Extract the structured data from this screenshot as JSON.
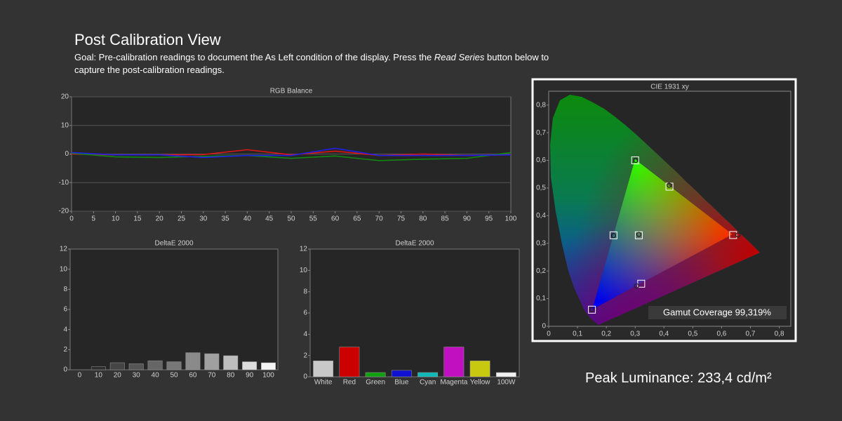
{
  "header": {
    "title": "Post Calibration View",
    "goal": [
      "Goal: Pre-calibration readings to document the As Left condition of the display. Press the ",
      "Read Series",
      " button below to capture the post-calibration readings."
    ]
  },
  "chart_data": [
    {
      "type": "line",
      "title": "RGB Balance",
      "x": [
        0,
        10,
        20,
        30,
        40,
        50,
        60,
        70,
        80,
        90,
        100
      ],
      "xlim": [
        0,
        100
      ],
      "xticks": [
        0,
        5,
        10,
        15,
        20,
        25,
        30,
        35,
        40,
        45,
        50,
        55,
        60,
        65,
        70,
        75,
        80,
        85,
        90,
        95,
        100
      ],
      "ylim": [
        -20,
        20
      ],
      "yticks": [
        -20,
        -10,
        0,
        10,
        20
      ],
      "grid": true,
      "series": [
        {
          "color": "#e01414",
          "values": [
            0,
            -0.3,
            -0.3,
            -0.2,
            1.5,
            -0.3,
            1,
            -0.5,
            0,
            -0.5,
            -0.3
          ]
        },
        {
          "color": "#118a11",
          "values": [
            0.3,
            -1,
            -1.2,
            -0.8,
            -0.5,
            -1.5,
            -0.7,
            -2.3,
            -1.8,
            -1.5,
            0.5
          ]
        },
        {
          "color": "#2020e8",
          "values": [
            0.5,
            -0.3,
            -0.3,
            -1.2,
            -0.5,
            -0.5,
            2,
            -0.5,
            -0.5,
            -0.5,
            -0.3
          ]
        }
      ]
    },
    {
      "type": "bar",
      "title": "DeltaE 2000",
      "categories": [
        "0",
        "10",
        "20",
        "30",
        "40",
        "50",
        "60",
        "70",
        "80",
        "90",
        "100"
      ],
      "values": [
        0,
        0.3,
        0.7,
        0.6,
        0.9,
        0.8,
        1.7,
        1.6,
        1.4,
        0.8,
        0.7
      ],
      "colors": [
        "#202020",
        "#2e2e2e",
        "#454545",
        "#555555",
        "#666666",
        "#777777",
        "#8a8a8a",
        "#a0a0a0",
        "#bdbdbd",
        "#dcdcdc",
        "#f4f4f4"
      ],
      "ylim": [
        0,
        12
      ],
      "yticks": [
        0,
        2,
        4,
        6,
        8,
        10,
        12
      ],
      "grid": false
    },
    {
      "type": "bar",
      "title": "DeltaE 2000",
      "categories": [
        "White",
        "Red",
        "Green",
        "Blue",
        "Cyan",
        "Magenta",
        "Yellow",
        "100W"
      ],
      "values": [
        1.5,
        2.8,
        0.4,
        0.6,
        0.4,
        2.8,
        1.5,
        0.4
      ],
      "colors": [
        "#c8c8c8",
        "#cc0000",
        "#10a010",
        "#1010d0",
        "#10b8b8",
        "#c010c0",
        "#c8c810",
        "#f0f0f0"
      ],
      "ylim": [
        0,
        12
      ],
      "yticks": [
        0,
        2,
        4,
        6,
        8,
        10,
        12
      ],
      "grid": false
    },
    {
      "type": "scatter",
      "title": "CIE 1931 xy",
      "xlim": [
        0,
        0.84
      ],
      "ylim": [
        0,
        0.85
      ],
      "xticks": [
        0,
        {
          "value": 0.1,
          "label": "0,1"
        },
        {
          "value": 0.2,
          "label": "0,2"
        },
        {
          "value": 0.3,
          "label": "0,3"
        },
        {
          "value": 0.4,
          "label": "0,4"
        },
        {
          "value": 0.5,
          "label": "0,5"
        },
        {
          "value": 0.6,
          "label": "0,6"
        },
        {
          "value": 0.7,
          "label": "0,7"
        },
        {
          "value": 0.8,
          "label": "0,8"
        }
      ],
      "yticks": [
        0,
        {
          "value": 0.1,
          "label": "0,1"
        },
        {
          "value": 0.2,
          "label": "0,2"
        },
        {
          "value": 0.3,
          "label": "0,3"
        },
        {
          "value": 0.4,
          "label": "0,4"
        },
        {
          "value": 0.5,
          "label": "0,5"
        },
        {
          "value": 0.6,
          "label": "0,6"
        },
        {
          "value": 0.7,
          "label": "0,7"
        },
        {
          "value": 0.8,
          "label": "0,8"
        }
      ],
      "series": [
        {
          "marker": "square",
          "color": "#ffffff",
          "x": [
            0.64,
            0.3,
            0.15,
            0.3127,
            0.225,
            0.321,
            0.419
          ],
          "y": [
            0.33,
            0.6,
            0.06,
            0.329,
            0.329,
            0.154,
            0.505
          ]
        },
        {
          "marker": "circle",
          "color": "#222222",
          "x": [
            0.657,
            0.302,
            0.15,
            0.313,
            0.225,
            0.305,
            0.418
          ],
          "y": [
            0.33,
            0.6,
            0.06,
            0.332,
            0.328,
            0.146,
            0.51
          ]
        }
      ],
      "annotation": "Gamut Coverage 99,319%"
    }
  ],
  "footer": {
    "peak_luminance": "Peak Luminance: 233,4 cd/m²"
  }
}
